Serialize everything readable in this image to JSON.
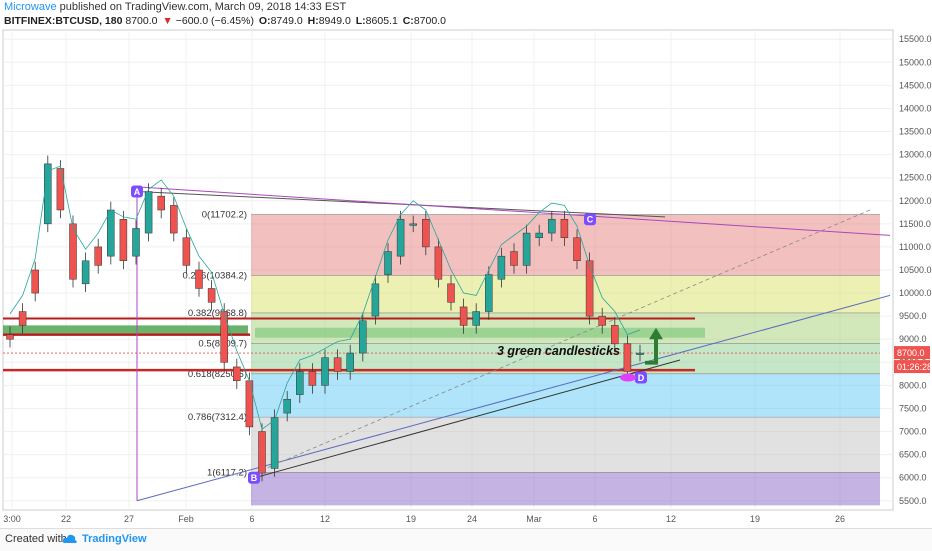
{
  "header": {
    "author": "Microwave",
    "published_text": "published on TradingView.com, March 09, 2018 14:33 EST",
    "symbol": "BITFINEX:BTCUSD, 180",
    "last": "8700.0",
    "change": "−600.0 (−6.45%)",
    "o_label": "O:",
    "o_value": "8749.0",
    "h_label": "H:",
    "h_value": "8949.0",
    "l_label": "L:",
    "l_value": "8605.1",
    "c_label": "C:",
    "c_value": "8700.0"
  },
  "footer": {
    "created_with": "Created with",
    "brand": "TradingView"
  },
  "chart_data": {
    "type": "candlestick",
    "y_range": [
      5300,
      15700
    ],
    "y_ticks": [
      "15500.0",
      "15000.0",
      "14500.0",
      "14000.0",
      "13500.0",
      "13000.0",
      "12500.0",
      "12000.0",
      "11500.0",
      "11000.0",
      "10500.0",
      "10000.0",
      "9500.0",
      "9000.0",
      "8500.0",
      "8000.0",
      "7500.0",
      "7000.0",
      "6500.0",
      "6000.0",
      "5500.0"
    ],
    "x_ticks": [
      "3:00",
      "22",
      "27",
      "Feb",
      "6",
      "12",
      "19",
      "24",
      "Mar",
      "6",
      "12",
      "19",
      "26"
    ],
    "price_label": "8700.0",
    "countdown_label": "01:26:28",
    "fib_levels": [
      {
        "label": "0(11702.2)",
        "value": 11702.2,
        "zone": "#e57373"
      },
      {
        "label": "0.236(10384.2)",
        "value": 10384.2,
        "zone": "#d4e157"
      },
      {
        "label": "0.382(9568.8)",
        "value": 9568.8,
        "zone": "#9ccc65"
      },
      {
        "label": "0.5(8909.7)",
        "value": 8909.7,
        "zone": "#81c784"
      },
      {
        "label": "0.618(8250.6)",
        "value": 8250.6,
        "zone": "#4fc3f7"
      },
      {
        "label": "0.786(7312.4)",
        "value": 7312.4,
        "zone": "#bdbdbd"
      },
      {
        "label": "1(6117.2)",
        "value": 6117.2,
        "zone": "#7e57c2"
      }
    ],
    "pattern_points": [
      {
        "label": "A",
        "value": 12200
      },
      {
        "label": "B",
        "value": 6000
      },
      {
        "label": "C",
        "value": 11600
      },
      {
        "label": "D",
        "value": 8170
      }
    ],
    "annotation": "3 green candlesticks",
    "price_path": [
      [
        9100,
        9000
      ],
      [
        9600,
        9300
      ],
      [
        10500,
        10000
      ],
      [
        11500,
        12800
      ],
      [
        12700,
        11800
      ],
      [
        11500,
        10300
      ],
      [
        10200,
        10700
      ],
      [
        11000,
        10600
      ],
      [
        10800,
        11800
      ],
      [
        11600,
        10700
      ],
      [
        10800,
        11400
      ],
      [
        11300,
        12200
      ],
      [
        12100,
        11800
      ],
      [
        11900,
        11300
      ],
      [
        11200,
        10600
      ],
      [
        10500,
        10100
      ],
      [
        10100,
        9800
      ],
      [
        9600,
        8500
      ],
      [
        8400,
        8100
      ],
      [
        8100,
        7100
      ],
      [
        7000,
        6100
      ],
      [
        6200,
        7300
      ],
      [
        7400,
        7700
      ],
      [
        7800,
        8300
      ],
      [
        8300,
        8000
      ],
      [
        8000,
        8600
      ],
      [
        8600,
        8300
      ],
      [
        8300,
        8700
      ],
      [
        8700,
        9400
      ],
      [
        9500,
        10200
      ],
      [
        10400,
        10900
      ],
      [
        10800,
        11600
      ],
      [
        11500,
        11500
      ],
      [
        11600,
        11000
      ],
      [
        11000,
        10300
      ],
      [
        10200,
        9800
      ],
      [
        9700,
        9300
      ],
      [
        9300,
        9600
      ],
      [
        9600,
        10400
      ],
      [
        10300,
        10800
      ],
      [
        10900,
        10600
      ],
      [
        10600,
        11300
      ],
      [
        11200,
        11300
      ],
      [
        11300,
        11600
      ],
      [
        11600,
        11200
      ],
      [
        11200,
        10700
      ],
      [
        10700,
        9500
      ],
      [
        9500,
        9300
      ],
      [
        9300,
        8900
      ],
      [
        8900,
        8300
      ],
      [
        8700,
        8700
      ]
    ]
  }
}
